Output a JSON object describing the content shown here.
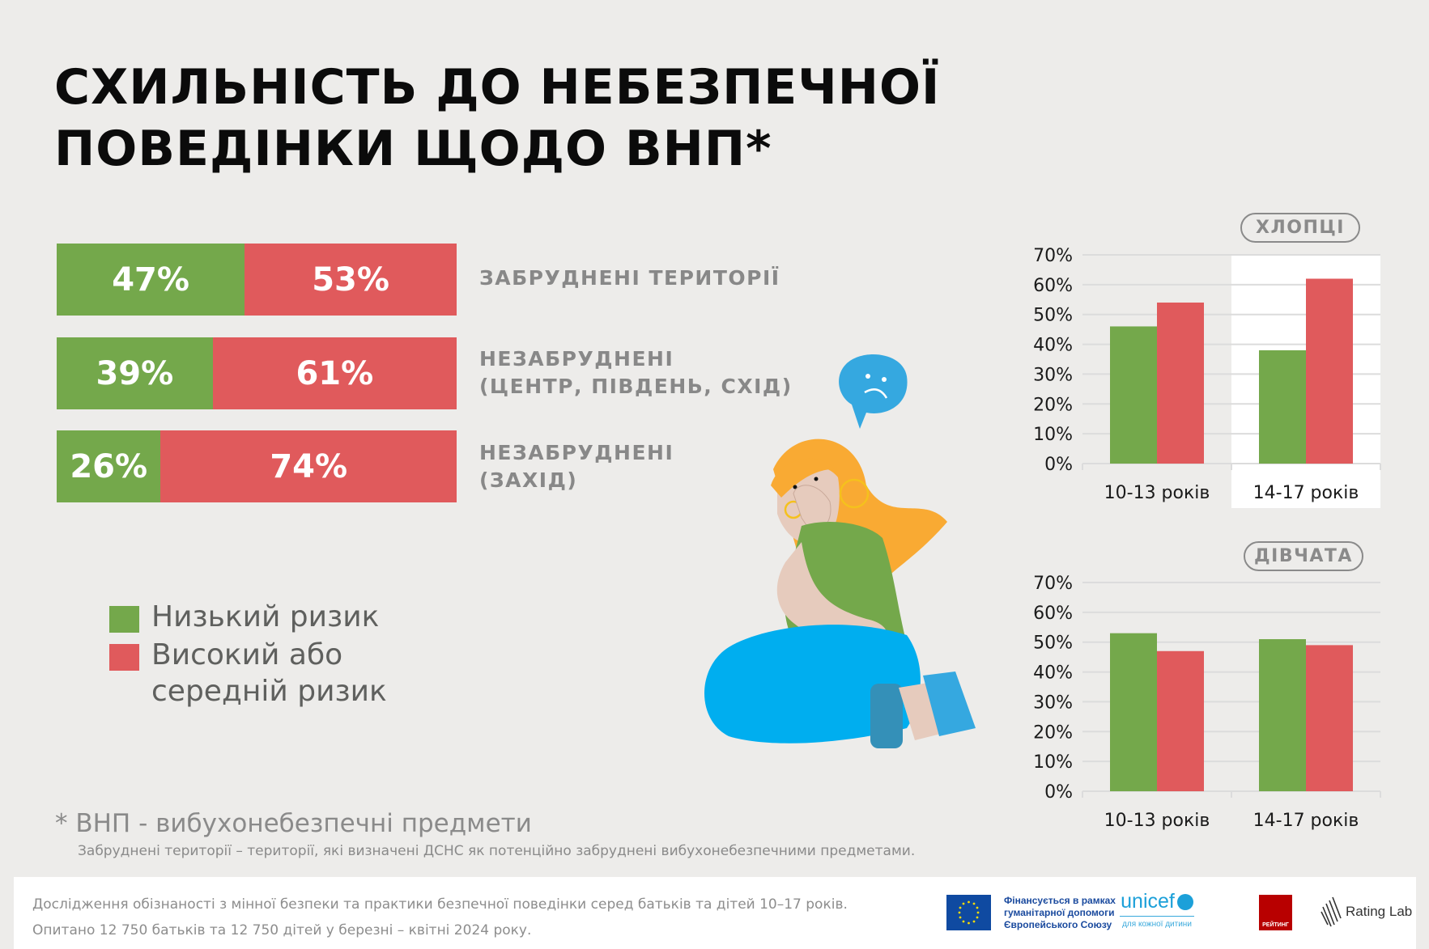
{
  "title": {
    "line1": "СХИЛЬНІСТЬ ДО НЕБЕЗПЕЧНОЇ",
    "line2": "ПОВЕДІНКИ ЩОДО ВНП*"
  },
  "colors": {
    "low_risk": "#74a84b",
    "high_risk": "#e05a5c",
    "background": "#edecea"
  },
  "territory_bars": [
    {
      "low": 47,
      "high": 53,
      "low_label": "47%",
      "high_label": "53%",
      "label_line1": "ЗАБРУДНЕНІ ТЕРИТОРІЇ",
      "label_line2": ""
    },
    {
      "low": 39,
      "high": 61,
      "low_label": "39%",
      "high_label": "61%",
      "label_line1": "НЕЗАБРУДНЕНІ",
      "label_line2": "(ЦЕНТР, ПІВДЕНЬ, СХІД)"
    },
    {
      "low": 26,
      "high": 74,
      "low_label": "26%",
      "high_label": "74%",
      "label_line1": "НЕЗАБРУДНЕНІ",
      "label_line2": "(ЗАХІД)"
    }
  ],
  "legend": {
    "low": "Низький ризик",
    "high_line1": "Високий або",
    "high_line2": "середній ризик"
  },
  "notes": {
    "abbr": "* ВНП - вибухонебезпечні предмети",
    "definition": "Забруднені території – території, які визначені ДСНС як потенційно забруднені вибухонебезпечними предметами."
  },
  "footer": {
    "line1": "Дослідження обізнаності з мінної безпеки та практики безпечної поведінки серед батьків та дітей 10–17 років.",
    "line2": "Опитано 12 750 батьків та 12 750 дітей у березні – квітні 2024 року.",
    "eu_line1": "Фінансується в рамках",
    "eu_line2": "гуманітарної допомоги",
    "eu_line3": "Європейського Союзу",
    "unicef": "unicef",
    "unicef_sub": "для кожної дитини",
    "rating": "РЕЙТИНГ",
    "rating_lab": "Rating Lab"
  },
  "chart_data": [
    {
      "type": "bar",
      "title": "ХЛОПЦІ",
      "categories": [
        "10-13 років",
        "14-17 років"
      ],
      "series": [
        {
          "name": "Низький ризик",
          "values": [
            46,
            38
          ]
        },
        {
          "name": "Високий або середній ризик",
          "values": [
            54,
            62
          ]
        }
      ],
      "yticks": [
        "0%",
        "10%",
        "20%",
        "30%",
        "40%",
        "50%",
        "60%",
        "70%"
      ],
      "ylim": [
        0,
        70
      ],
      "grid": true,
      "highlight_category": "14-17 років"
    },
    {
      "type": "bar",
      "title": "ДІВЧАТА",
      "categories": [
        "10-13 років",
        "14-17 років"
      ],
      "series": [
        {
          "name": "Низький ризик",
          "values": [
            53,
            51
          ]
        },
        {
          "name": "Високий або середній ризик",
          "values": [
            47,
            49
          ]
        }
      ],
      "yticks": [
        "0%",
        "10%",
        "20%",
        "30%",
        "40%",
        "50%",
        "60%",
        "70%"
      ],
      "ylim": [
        0,
        70
      ],
      "grid": true
    }
  ]
}
